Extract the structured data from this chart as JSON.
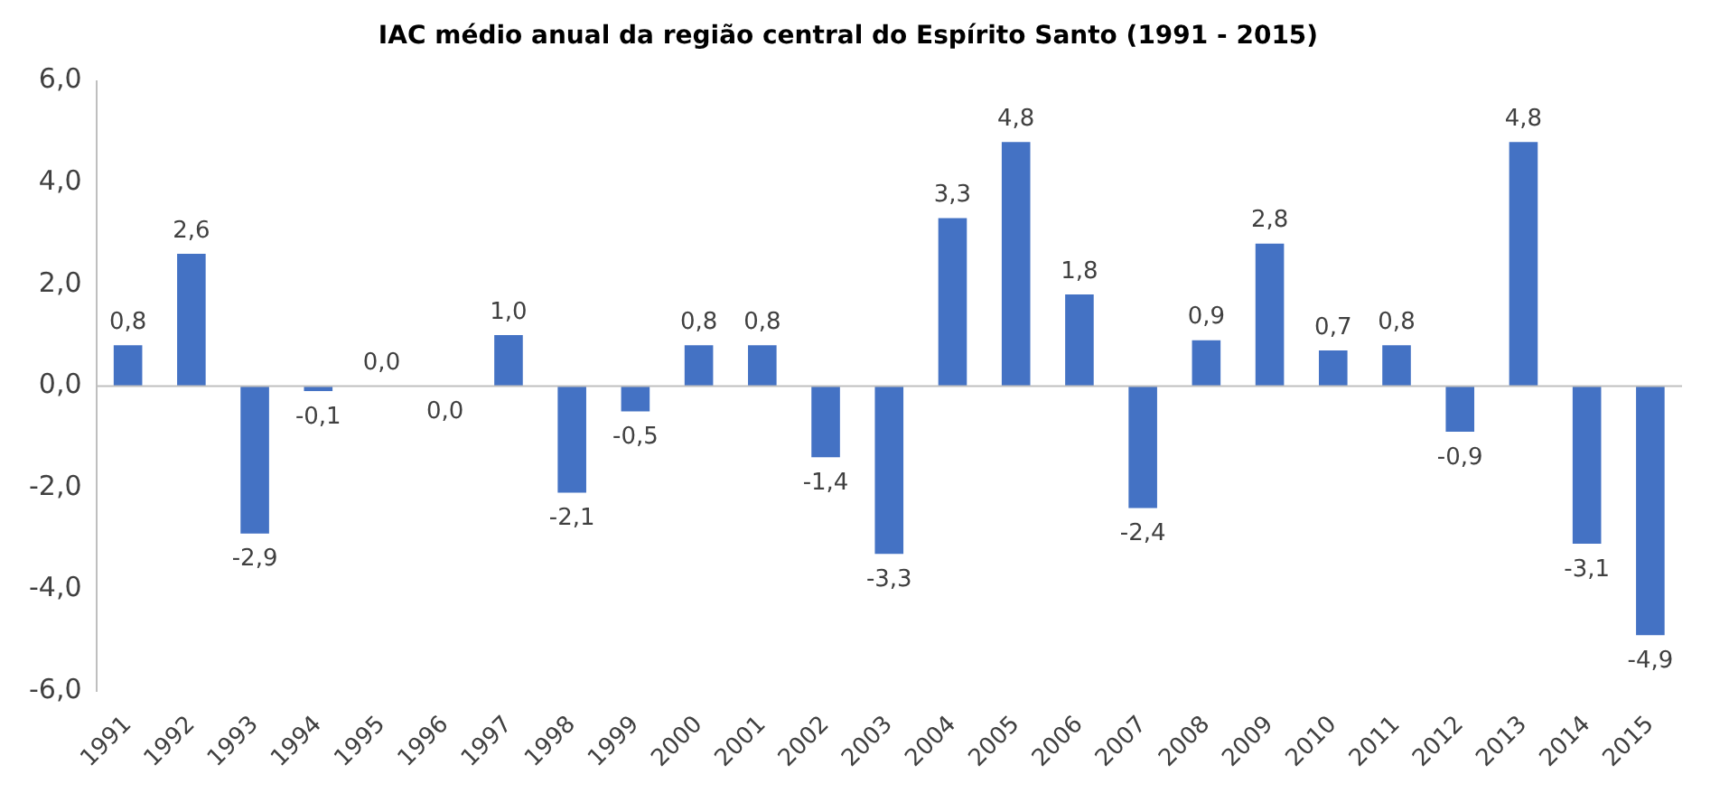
{
  "chart_data": {
    "type": "bar",
    "title": "IAC médio anual da região central do Espírito Santo (1991 - 2015)",
    "categories": [
      "1991",
      "1992",
      "1993",
      "1994",
      "1995",
      "1996",
      "1997",
      "1998",
      "1999",
      "2000",
      "2001",
      "2002",
      "2003",
      "2004",
      "2005",
      "2006",
      "2007",
      "2008",
      "2009",
      "2010",
      "2011",
      "2012",
      "2013",
      "2014",
      "2015"
    ],
    "values": [
      0.8,
      2.6,
      -2.9,
      -0.1,
      0.0,
      0.0,
      1.0,
      -2.1,
      -0.5,
      0.8,
      0.8,
      -1.4,
      -3.3,
      3.3,
      4.8,
      1.8,
      -2.4,
      0.9,
      2.8,
      0.7,
      0.8,
      -0.9,
      4.8,
      -3.1,
      -4.9
    ],
    "value_labels": [
      "0,8",
      "2,6",
      "-2,9",
      "-0,1",
      "0,0",
      "0,0",
      "1,0",
      "-2,1",
      "-0,5",
      "0,8",
      "0,8",
      "-1,4",
      "-3,3",
      "3,3",
      "4,8",
      "1,8",
      "-2,4",
      "0,9",
      "2,8",
      "0,7",
      "0,8",
      "-0,9",
      "4,8",
      "-3,1",
      "-4,9"
    ],
    "color": "#4472c4",
    "ylim": [
      -6,
      6
    ],
    "yticks": [
      {
        "value": -6,
        "label": "-6,0"
      },
      {
        "value": -4,
        "label": "-4,0"
      },
      {
        "value": -2,
        "label": "-2,0"
      },
      {
        "value": 0,
        "label": "0,0"
      },
      {
        "value": 2,
        "label": "2,0"
      },
      {
        "value": 4,
        "label": "4,0"
      },
      {
        "value": 6,
        "label": "6,0"
      }
    ],
    "ref_lines": [
      {
        "axis": "y",
        "value": 0,
        "color": "#bfbfbf"
      }
    ],
    "grid": false,
    "legend": false
  }
}
